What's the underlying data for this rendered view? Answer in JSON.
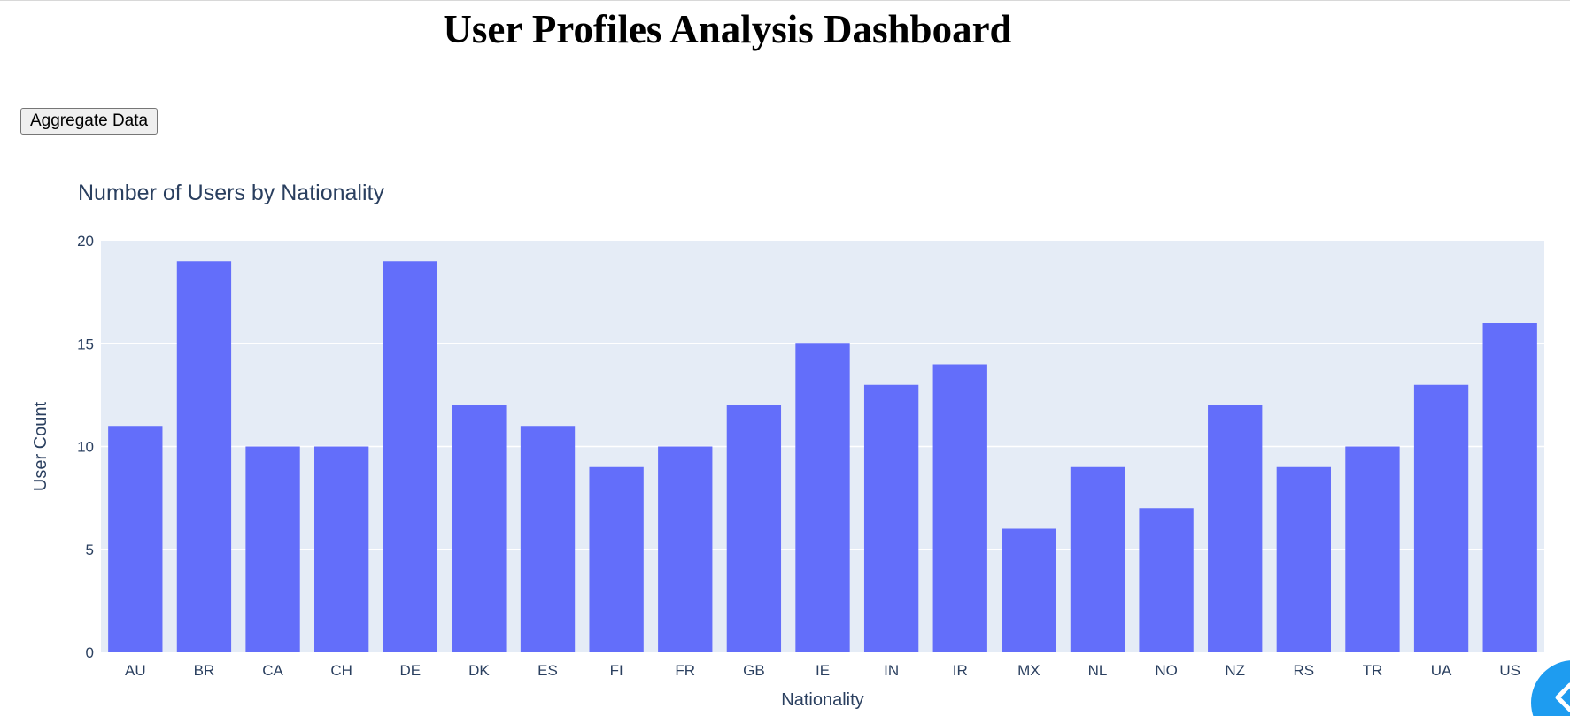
{
  "page": {
    "title": "User Profiles Analysis Dashboard",
    "aggregate_button_label": "Aggregate Data"
  },
  "colors": {
    "bar": "#636efa",
    "plot_bg": "#e5ecf6",
    "grid": "#ffffff",
    "text": "#2a3f5f",
    "fab": "#1e9cf0"
  },
  "fab": {
    "icon": "chevron-left-icon"
  },
  "chart_data": {
    "type": "bar",
    "title": "Number of Users by Nationality",
    "xlabel": "Nationality",
    "ylabel": "User Count",
    "categories": [
      "AU",
      "BR",
      "CA",
      "CH",
      "DE",
      "DK",
      "ES",
      "FI",
      "FR",
      "GB",
      "IE",
      "IN",
      "IR",
      "MX",
      "NL",
      "NO",
      "NZ",
      "RS",
      "TR",
      "UA",
      "US"
    ],
    "values": [
      11,
      19,
      10,
      10,
      19,
      12,
      11,
      9,
      10,
      12,
      15,
      13,
      14,
      6,
      9,
      7,
      12,
      9,
      10,
      13,
      16
    ],
    "ylim": [
      0,
      20
    ],
    "yticks": [
      0,
      5,
      10,
      15,
      20
    ],
    "grid": true,
    "legend": false
  }
}
